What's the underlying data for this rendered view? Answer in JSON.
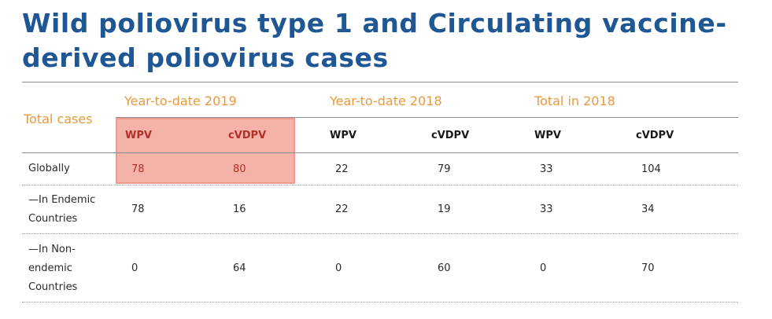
{
  "title": {
    "line1": "Wild poliovirus type 1 and Circulating vaccine-",
    "line2": "derived poliovirus cases"
  },
  "table": {
    "corner_label": "Total cases",
    "groups": [
      "Year-to-date 2019",
      "Year-to-date 2018",
      "Total in 2018"
    ],
    "columns": [
      "WPV",
      "cVDPV",
      "WPV",
      "cVDPV",
      "WPV",
      "cVDPV"
    ],
    "rows": [
      {
        "label_lines": [
          "Globally"
        ],
        "values": [
          "78",
          "80",
          "22",
          "79",
          "33",
          "104"
        ]
      },
      {
        "label_lines": [
          "—In Endemic",
          "Countries"
        ],
        "values": [
          "78",
          "16",
          "22",
          "19",
          "33",
          "34"
        ]
      },
      {
        "label_lines": [
          "—In Non-",
          "endemic",
          "Countries"
        ],
        "values": [
          "0",
          "64",
          "0",
          "60",
          "0",
          "70"
        ]
      }
    ]
  },
  "colors": {
    "title": "#1f5795",
    "accent_orange": "#e89a3c",
    "highlight_fill": "#f4b2a8",
    "highlight_text": "#b2302b"
  }
}
